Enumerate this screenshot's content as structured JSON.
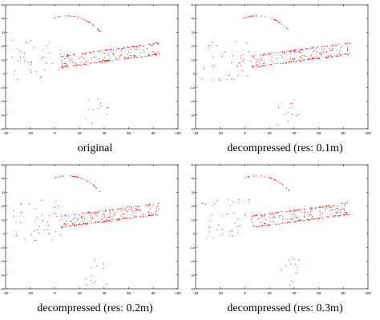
{
  "figure": {
    "panels": [
      {
        "caption": "original"
      },
      {
        "caption": "decompressed (res: 0.1m)"
      },
      {
        "caption": "decompressed (res: 0.2m)"
      },
      {
        "caption": "decompressed (res: 0.3m)"
      }
    ]
  },
  "chart_data": [
    {
      "type": "scatter",
      "title": "",
      "caption": "original",
      "xlabel": "",
      "ylabel": "",
      "xlim": [
        -40,
        100
      ],
      "ylim": [
        -40,
        50
      ],
      "xticks": [
        -40,
        -20,
        0,
        20,
        40,
        60,
        80,
        100
      ],
      "yticks": [
        -40,
        -30,
        -20,
        -10,
        0,
        10,
        20,
        30,
        40,
        50
      ],
      "grid": false,
      "color": "#e00000"
    },
    {
      "type": "scatter",
      "title": "",
      "caption": "decompressed (res: 0.1m)",
      "xlabel": "",
      "ylabel": "",
      "xlim": [
        -40,
        100
      ],
      "ylim": [
        -40,
        50
      ],
      "xticks": [
        -40,
        -20,
        0,
        20,
        40,
        60,
        80,
        100
      ],
      "yticks": [
        -40,
        -30,
        -20,
        -10,
        0,
        10,
        20,
        30,
        40,
        50
      ],
      "grid": false,
      "color": "#e00000"
    },
    {
      "type": "scatter",
      "title": "",
      "caption": "decompressed (res: 0.2m)",
      "xlabel": "",
      "ylabel": "",
      "xlim": [
        -40,
        100
      ],
      "ylim": [
        -40,
        50
      ],
      "xticks": [
        -40,
        -20,
        0,
        20,
        40,
        60,
        80,
        100
      ],
      "yticks": [
        -40,
        -30,
        -20,
        -10,
        0,
        10,
        20,
        30,
        40,
        50
      ],
      "grid": false,
      "color": "#e00000"
    },
    {
      "type": "scatter",
      "title": "",
      "caption": "decompressed (res: 0.3m)",
      "xlabel": "",
      "ylabel": "",
      "xlim": [
        -40,
        100
      ],
      "ylim": [
        -40,
        50
      ],
      "xticks": [
        -40,
        -20,
        0,
        20,
        40,
        60,
        80,
        100
      ],
      "yticks": [
        -40,
        -30,
        -20,
        -10,
        0,
        10,
        20,
        30,
        40,
        50
      ],
      "grid": false,
      "color": "#e00000"
    }
  ]
}
